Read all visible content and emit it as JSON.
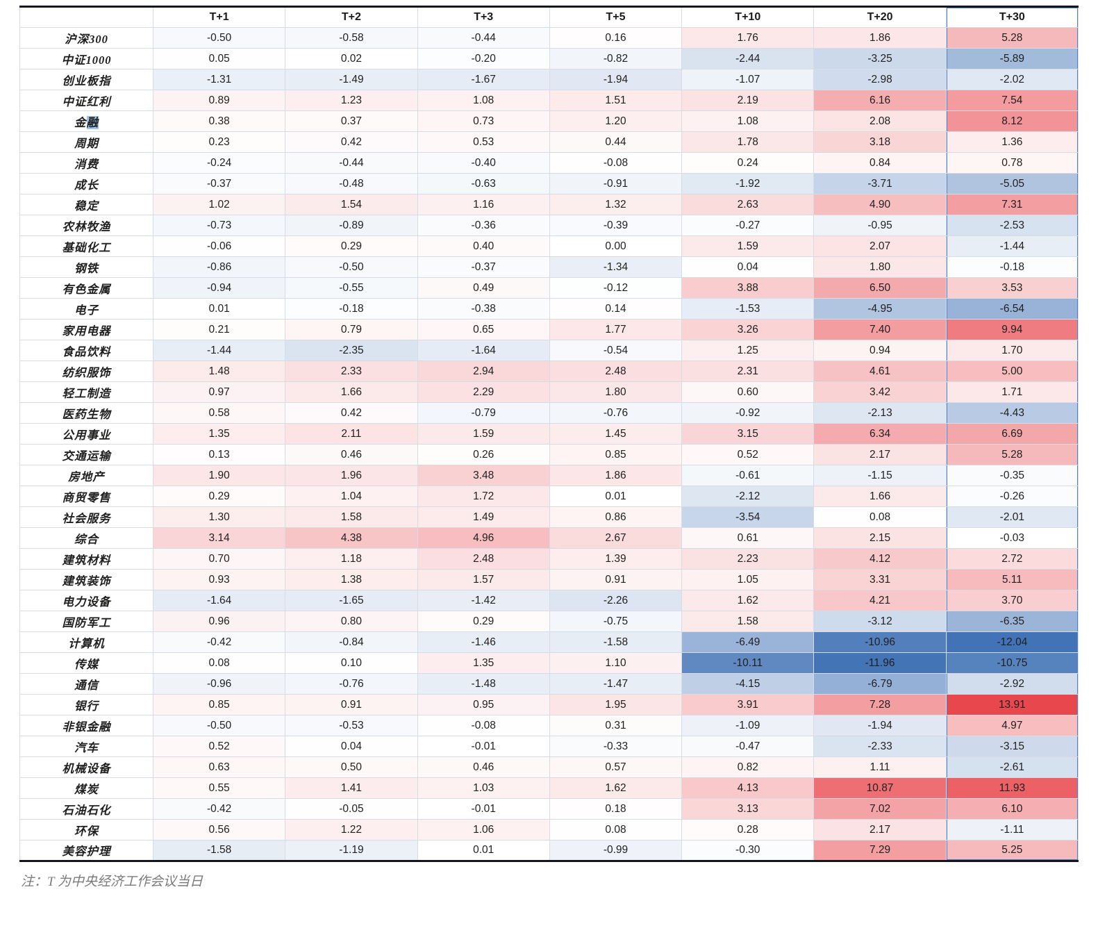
{
  "chart_data": {
    "type": "heatmap",
    "title": "",
    "columns": [
      "T+1",
      "T+2",
      "T+3",
      "T+5",
      "T+10",
      "T+20",
      "T+30"
    ],
    "rows": [
      {
        "label": "沪深300",
        "values": [
          -0.5,
          -0.58,
          -0.44,
          0.16,
          1.76,
          1.86,
          5.28
        ]
      },
      {
        "label": "中证1000",
        "values": [
          0.05,
          0.02,
          -0.2,
          -0.82,
          -2.44,
          -3.25,
          -5.89
        ]
      },
      {
        "label": "创业板指",
        "values": [
          -1.31,
          -1.49,
          -1.67,
          -1.94,
          -1.07,
          -2.98,
          -2.02
        ]
      },
      {
        "label": "中证红利",
        "values": [
          0.89,
          1.23,
          1.08,
          1.51,
          2.19,
          6.16,
          7.54
        ]
      },
      {
        "label": "金融",
        "values": [
          0.38,
          0.37,
          0.73,
          1.2,
          1.08,
          2.08,
          8.12
        ]
      },
      {
        "label": "周期",
        "values": [
          0.23,
          0.42,
          0.53,
          0.44,
          1.78,
          3.18,
          1.36
        ]
      },
      {
        "label": "消费",
        "values": [
          -0.24,
          -0.44,
          -0.4,
          -0.08,
          0.24,
          0.84,
          0.78
        ]
      },
      {
        "label": "成长",
        "values": [
          -0.37,
          -0.48,
          -0.63,
          -0.91,
          -1.92,
          -3.71,
          -5.05
        ]
      },
      {
        "label": "稳定",
        "values": [
          1.02,
          1.54,
          1.16,
          1.32,
          2.63,
          4.9,
          7.31
        ]
      },
      {
        "label": "农林牧渔",
        "values": [
          -0.73,
          -0.89,
          -0.36,
          -0.39,
          -0.27,
          -0.95,
          -2.53
        ]
      },
      {
        "label": "基础化工",
        "values": [
          -0.06,
          0.29,
          0.4,
          0.0,
          1.59,
          2.07,
          -1.44
        ]
      },
      {
        "label": "钢铁",
        "values": [
          -0.86,
          -0.5,
          -0.37,
          -1.34,
          0.04,
          1.8,
          -0.18
        ]
      },
      {
        "label": "有色金属",
        "values": [
          -0.94,
          -0.55,
          0.49,
          -0.12,
          3.88,
          6.5,
          3.53
        ]
      },
      {
        "label": "电子",
        "values": [
          0.01,
          -0.18,
          -0.38,
          0.14,
          -1.53,
          -4.95,
          -6.54
        ]
      },
      {
        "label": "家用电器",
        "values": [
          0.21,
          0.79,
          0.65,
          1.77,
          3.26,
          7.4,
          9.94
        ]
      },
      {
        "label": "食品饮料",
        "values": [
          -1.44,
          -2.35,
          -1.64,
          -0.54,
          1.25,
          0.94,
          1.7
        ]
      },
      {
        "label": "纺织服饰",
        "values": [
          1.48,
          2.33,
          2.94,
          2.48,
          2.31,
          4.61,
          5.0
        ]
      },
      {
        "label": "轻工制造",
        "values": [
          0.97,
          1.66,
          2.29,
          1.8,
          0.6,
          3.42,
          1.71
        ]
      },
      {
        "label": "医药生物",
        "values": [
          0.58,
          0.42,
          -0.79,
          -0.76,
          -0.92,
          -2.13,
          -4.43
        ]
      },
      {
        "label": "公用事业",
        "values": [
          1.35,
          2.11,
          1.59,
          1.45,
          3.15,
          6.34,
          6.69
        ]
      },
      {
        "label": "交通运输",
        "values": [
          0.13,
          0.46,
          0.26,
          0.85,
          0.52,
          2.17,
          5.28
        ]
      },
      {
        "label": "房地产",
        "values": [
          1.9,
          1.96,
          3.48,
          1.86,
          -0.61,
          -1.15,
          -0.35
        ]
      },
      {
        "label": "商贸零售",
        "values": [
          0.29,
          1.04,
          1.72,
          0.01,
          -2.12,
          1.66,
          -0.26
        ]
      },
      {
        "label": "社会服务",
        "values": [
          1.3,
          1.58,
          1.49,
          0.86,
          -3.54,
          0.08,
          -2.01
        ]
      },
      {
        "label": "综合",
        "values": [
          3.14,
          4.38,
          4.96,
          2.67,
          0.61,
          2.15,
          -0.03
        ]
      },
      {
        "label": "建筑材料",
        "values": [
          0.7,
          1.18,
          2.48,
          1.39,
          2.23,
          4.12,
          2.72
        ]
      },
      {
        "label": "建筑装饰",
        "values": [
          0.93,
          1.38,
          1.57,
          0.91,
          1.05,
          3.31,
          5.11
        ]
      },
      {
        "label": "电力设备",
        "values": [
          -1.64,
          -1.65,
          -1.42,
          -2.26,
          1.62,
          4.21,
          3.7
        ]
      },
      {
        "label": "国防军工",
        "values": [
          0.96,
          0.8,
          0.29,
          -0.75,
          1.58,
          -3.12,
          -6.35
        ]
      },
      {
        "label": "计算机",
        "values": [
          -0.42,
          -0.84,
          -1.46,
          -1.58,
          -6.49,
          -10.96,
          -12.04
        ]
      },
      {
        "label": "传媒",
        "values": [
          0.08,
          0.1,
          1.35,
          1.1,
          -10.11,
          -11.96,
          -10.75
        ]
      },
      {
        "label": "通信",
        "values": [
          -0.96,
          -0.76,
          -1.48,
          -1.47,
          -4.15,
          -6.79,
          -2.92
        ]
      },
      {
        "label": "银行",
        "values": [
          0.85,
          0.91,
          0.95,
          1.95,
          3.91,
          7.28,
          13.91
        ]
      },
      {
        "label": "非银金融",
        "values": [
          -0.5,
          -0.53,
          -0.08,
          0.31,
          -1.09,
          -1.94,
          4.97
        ]
      },
      {
        "label": "汽车",
        "values": [
          0.52,
          0.04,
          -0.01,
          -0.33,
          -0.47,
          -2.33,
          -3.15
        ]
      },
      {
        "label": "机械设备",
        "values": [
          0.63,
          0.5,
          0.46,
          0.57,
          0.82,
          1.11,
          -2.61
        ]
      },
      {
        "label": "煤炭",
        "values": [
          0.55,
          1.41,
          1.03,
          1.62,
          4.13,
          10.87,
          11.93
        ]
      },
      {
        "label": "石油石化",
        "values": [
          -0.42,
          -0.05,
          -0.01,
          0.18,
          3.13,
          7.02,
          6.1
        ]
      },
      {
        "label": "环保",
        "values": [
          0.56,
          1.22,
          1.06,
          0.08,
          0.28,
          2.17,
          -1.11
        ]
      },
      {
        "label": "美容护理",
        "values": [
          -1.58,
          -1.19,
          0.01,
          -0.99,
          -0.3,
          7.29,
          5.25
        ]
      }
    ],
    "colorscale": {
      "negative_max_color": "#4273b6",
      "midpoint_color": "#ffffff",
      "positive_max_color": "#e8474d",
      "domain": [
        -12.04,
        0,
        13.91
      ]
    },
    "note": "注：T 为中央经济工作会议当日"
  },
  "ui": {
    "selected_column": "T+30",
    "label_selection": {
      "row_label": "金融",
      "char_index": 1
    }
  }
}
